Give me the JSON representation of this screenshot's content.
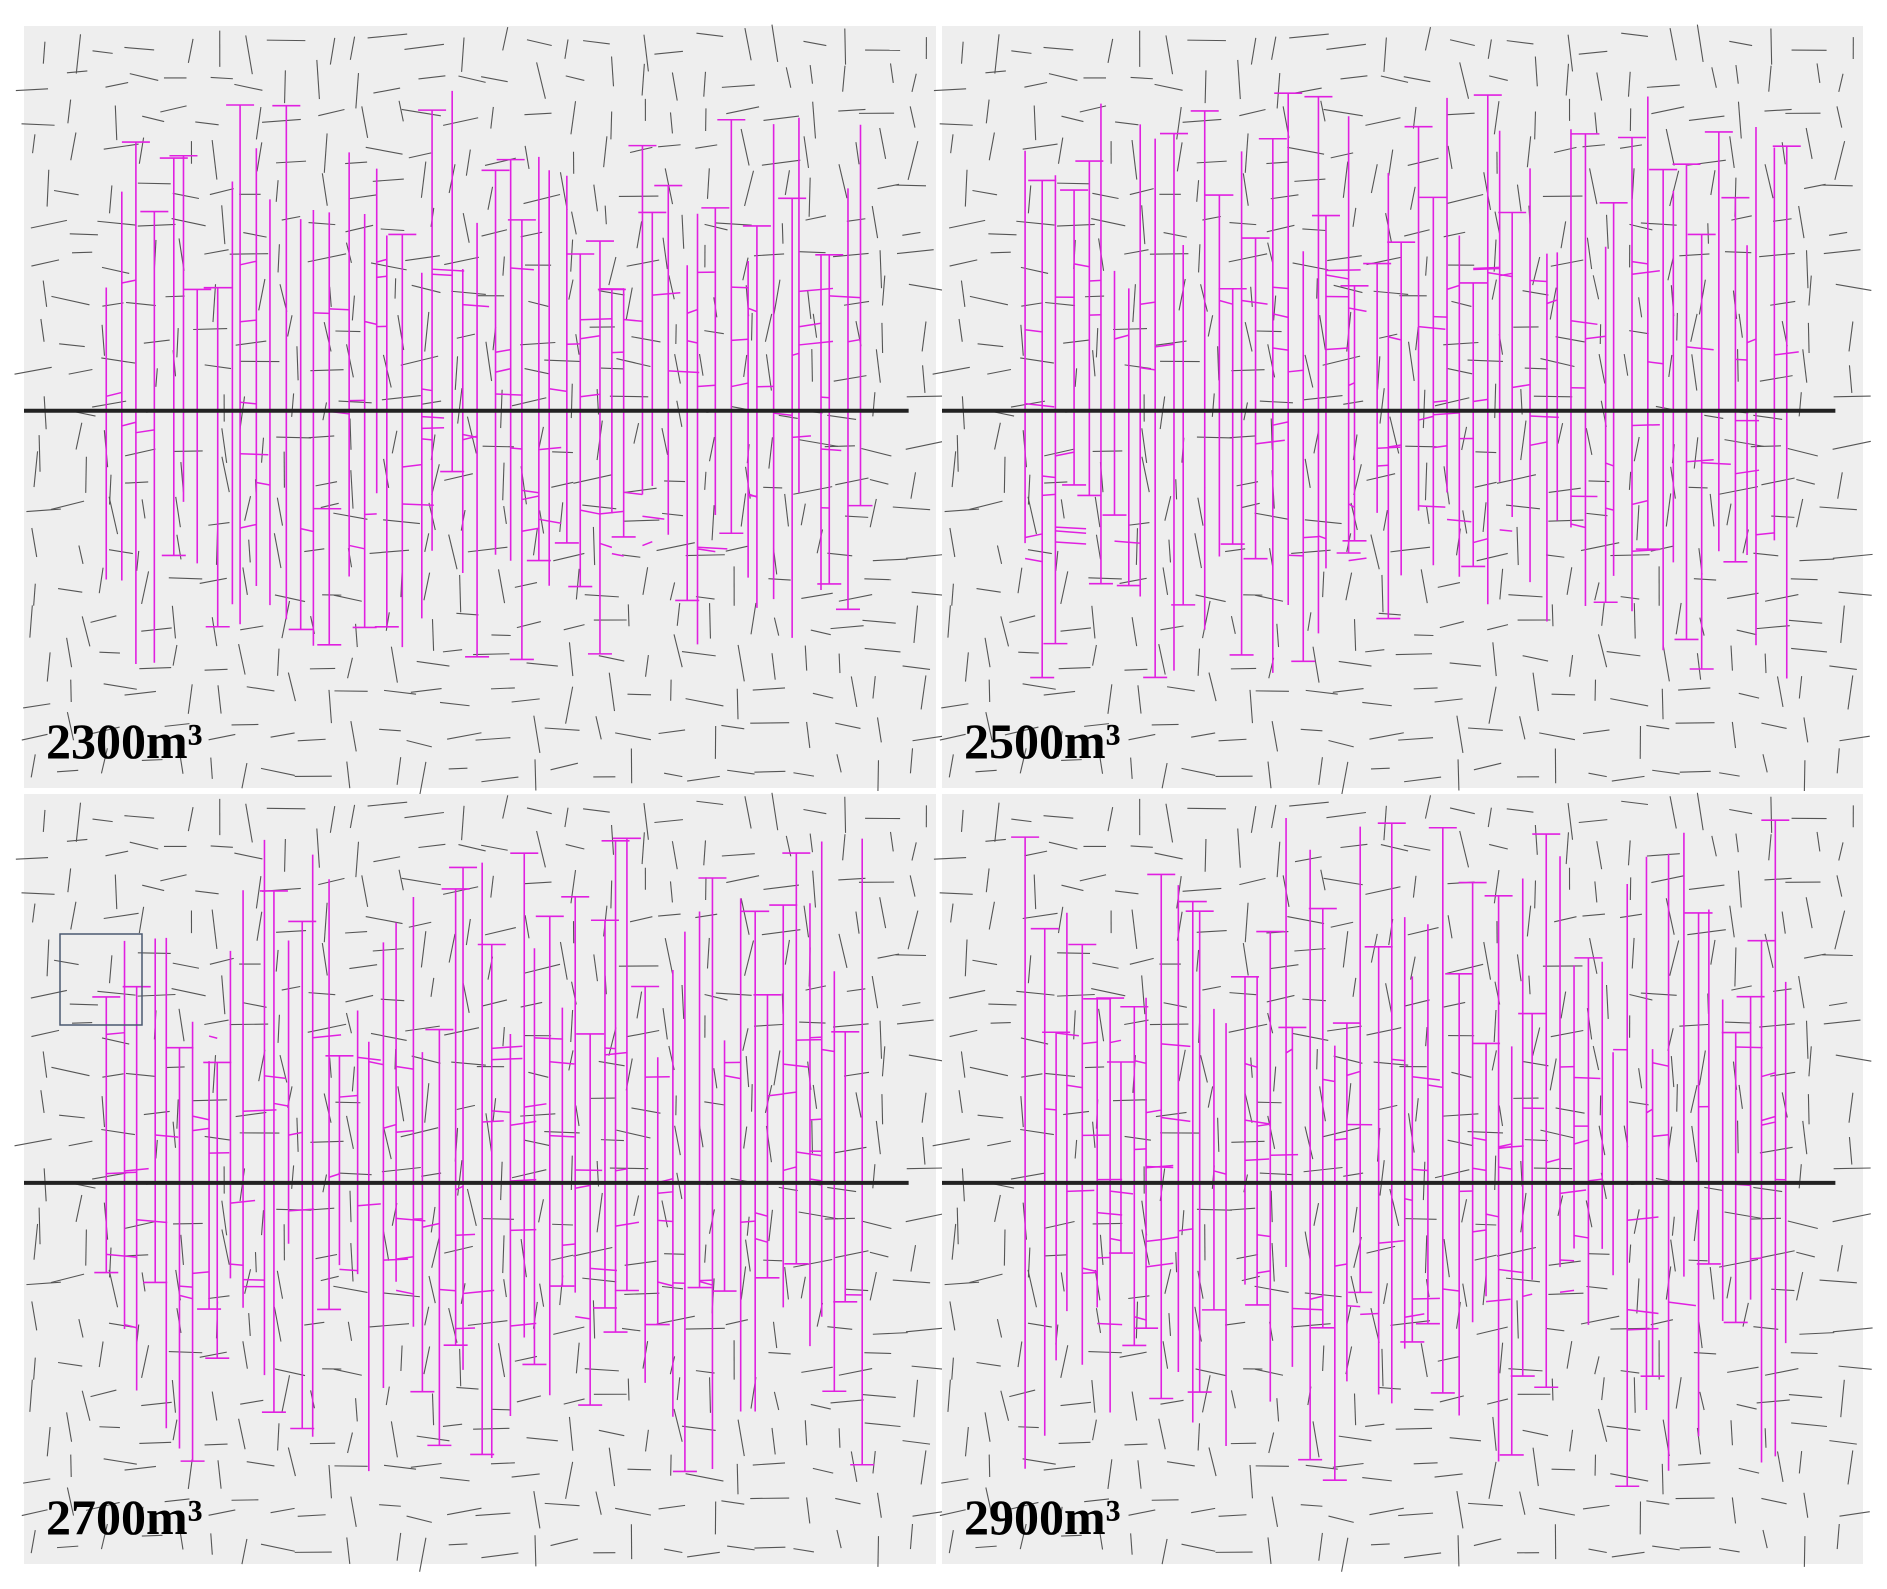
{
  "panels": [
    {
      "label": "2300m³"
    },
    {
      "label": "2500m³"
    },
    {
      "label": "2700m³"
    },
    {
      "label": "2900m³"
    }
  ]
}
